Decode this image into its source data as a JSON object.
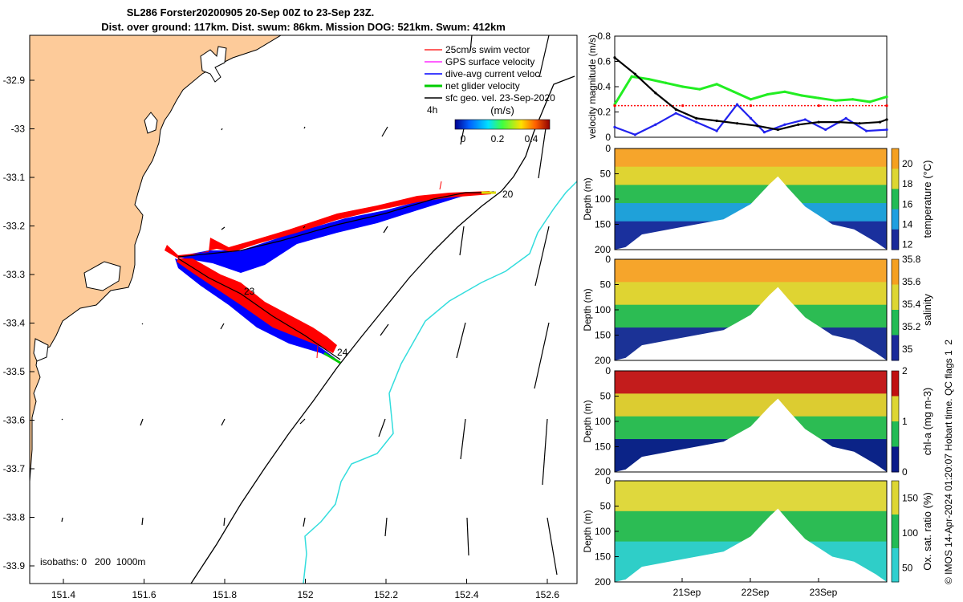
{
  "header": {
    "title": "SL286 Forster20200905 20-Sep 00Z to 23-Sep 23Z.",
    "subtitle": "Dist. over ground: 117km. Dist. swum: 86km. Mission DOG: 521km. Swum: 412km"
  },
  "map": {
    "legend": [
      {
        "label": "25cm/s swim vector",
        "color": "#ff0000"
      },
      {
        "label": "GPS surface velocity",
        "color": "#ff00ff"
      },
      {
        "label": "dive-avg current veloc.",
        "color": "#0000ff"
      },
      {
        "label": "net glider velocity",
        "color": "#00cc00"
      },
      {
        "label": "sfc geo. vel. 23-Sep-2020",
        "color": "#000000"
      }
    ],
    "time_label": "4h",
    "speed_colorbar": {
      "unit": "(m/s)",
      "ticks": [
        "0",
        "0.2",
        "0.4"
      ]
    },
    "track_labels": [
      "20",
      "23",
      "24"
    ],
    "isobaths_text": "isobaths: 0   200  1000m",
    "x_ticks": [
      "151.4",
      "151.6",
      "151.8",
      "152",
      "152.2",
      "152.4",
      "152.6"
    ],
    "y_ticks": [
      "-32.9",
      "-33",
      "-33.1",
      "-33.2",
      "-33.3",
      "-33.4",
      "-33.5",
      "-33.6",
      "-33.7",
      "-33.8",
      "-33.9"
    ],
    "colors": {
      "land": "#fdcb9a",
      "track_red": "#ff0000",
      "track_blue": "#0000ff",
      "isobath_1000": "#33dddd"
    }
  },
  "chart_data": [
    {
      "type": "line",
      "ylabel": "velocity magnitude (m/s)",
      "ylim": [
        0,
        0.8
      ],
      "y_ticks": [
        "0",
        "0.2",
        "0.4",
        "0.6",
        "0.8"
      ],
      "x_range_days": [
        0,
        4
      ],
      "series": [
        {
          "name": "net glider velocity",
          "color": "#22ee22",
          "x": [
            0,
            0.25,
            0.5,
            0.75,
            1.0,
            1.25,
            1.5,
            1.75,
            2.0,
            2.25,
            2.5,
            2.75,
            3.0,
            3.25,
            3.5,
            3.75,
            4.0
          ],
          "values": [
            0.26,
            0.48,
            0.46,
            0.43,
            0.4,
            0.38,
            0.42,
            0.36,
            0.3,
            0.34,
            0.36,
            0.33,
            0.31,
            0.29,
            0.3,
            0.28,
            0.32
          ]
        },
        {
          "name": "swim speed",
          "color": "#ff0000",
          "x": [
            0,
            1,
            2,
            3,
            4
          ],
          "values": [
            0.25,
            0.25,
            0.25,
            0.25,
            0.25
          ]
        },
        {
          "name": "dive-avg current",
          "color": "#2222ee",
          "x": [
            0,
            0.3,
            0.6,
            0.9,
            1.2,
            1.5,
            1.8,
            2.0,
            2.2,
            2.5,
            2.8,
            3.1,
            3.4,
            3.7,
            4.0
          ],
          "values": [
            0.08,
            0.02,
            0.1,
            0.19,
            0.12,
            0.05,
            0.26,
            0.15,
            0.04,
            0.1,
            0.14,
            0.06,
            0.15,
            0.05,
            0.06
          ]
        },
        {
          "name": "sfc geo. velocity",
          "color": "#000000",
          "x": [
            0,
            0.3,
            0.6,
            0.9,
            1.2,
            1.5,
            1.8,
            2.1,
            2.4,
            2.7,
            3.0,
            3.3,
            3.6,
            3.9,
            4.0
          ],
          "values": [
            0.63,
            0.5,
            0.35,
            0.22,
            0.15,
            0.13,
            0.11,
            0.09,
            0.06,
            0.1,
            0.12,
            0.12,
            0.11,
            0.12,
            0.14
          ]
        }
      ]
    },
    {
      "type": "heatmap",
      "variable": "temperature",
      "ylabel": "Depth (m)",
      "clabel": "temperature (°C)",
      "c_ticks": [
        "12",
        "14",
        "16",
        "18",
        "20"
      ],
      "crange": [
        11.5,
        21.5
      ],
      "colors": [
        "#1a2a9a",
        "#1f9fe0",
        "#22bb55",
        "#ddd633",
        "#f5a020"
      ],
      "y_ticks": [
        "0",
        "50",
        "100",
        "150",
        "200"
      ]
    },
    {
      "type": "heatmap",
      "variable": "salinity",
      "ylabel": "Depth (m)",
      "clabel": "salinity",
      "c_ticks": [
        "35",
        "35.2",
        "35.4",
        "35.6",
        "35.8"
      ],
      "crange": [
        34.9,
        35.8
      ],
      "colors": [
        "#1a2a9a",
        "#22bb55",
        "#ddd633",
        "#f5a020"
      ],
      "y_ticks": [
        "0",
        "50",
        "100",
        "150",
        "200"
      ]
    },
    {
      "type": "heatmap",
      "variable": "chl-a",
      "ylabel": "Depth (m)",
      "clabel": "chl-a (mg m-3)",
      "c_ticks": [
        "0",
        "1",
        "2"
      ],
      "crange": [
        0,
        2
      ],
      "colors": [
        "#0a1a8a",
        "#22bb55",
        "#ddd633",
        "#c01010"
      ],
      "y_ticks": [
        "0",
        "50",
        "100",
        "150",
        "200"
      ]
    },
    {
      "type": "heatmap",
      "variable": "Ox. sat. ratio",
      "ylabel": "Depth (m)",
      "clabel": "Ox. sat. ratio (%)",
      "c_ticks": [
        "50",
        "100",
        "150"
      ],
      "crange": [
        30,
        175
      ],
      "colors": [
        "#2fcfcf",
        "#22bb55",
        "#ddd633"
      ],
      "y_ticks": [
        "0",
        "50",
        "100",
        "150",
        "200"
      ]
    }
  ],
  "time_axis": {
    "ticks": [
      "21Sep",
      "22Sep",
      "23Sep"
    ]
  },
  "footer": {
    "credit": "© IMOS 14-Apr-2024 01:20:07 Hobart time. QC flags 1  2"
  }
}
